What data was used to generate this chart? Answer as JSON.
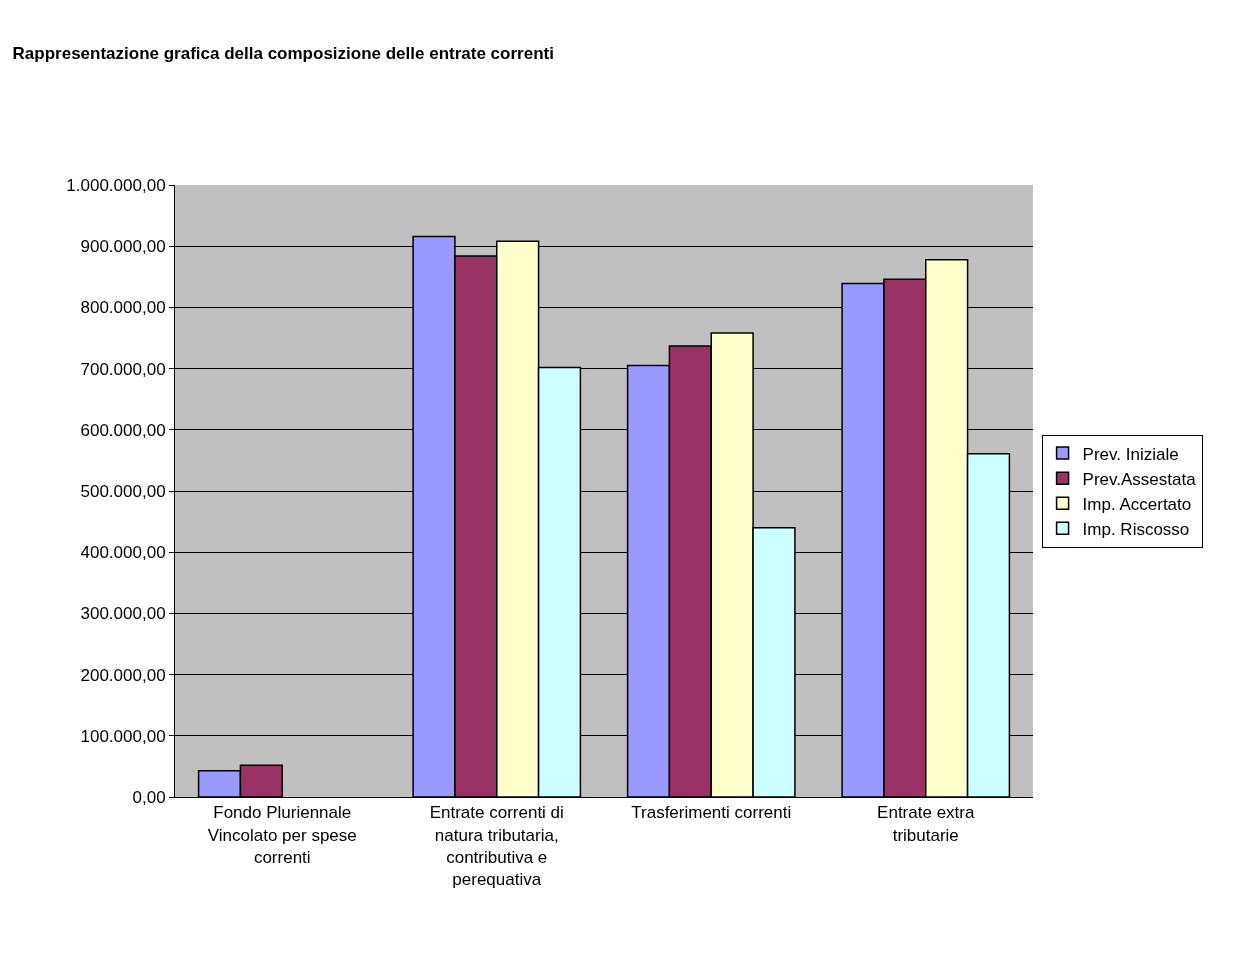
{
  "chart_data": {
    "type": "bar",
    "title": "Rappresentazione grafica della composizione delle entrate correnti",
    "categories": [
      "Fondo Pluriennale Vincolato per spese correnti",
      "Entrate correnti di natura tributaria, contributiva e perequativa",
      "Trasferimenti correnti",
      "Entrate extra tributarie"
    ],
    "series": [
      {
        "name": "Prev. Iniziale",
        "color": "#9999ff",
        "values": [
          43000,
          916000,
          705000,
          839000
        ]
      },
      {
        "name": "Prev.Assestata",
        "color": "#993366",
        "values": [
          52000,
          884000,
          737000,
          846000
        ]
      },
      {
        "name": "Imp. Accertato",
        "color": "#ffffcc",
        "values": [
          null,
          908000,
          758000,
          878000
        ]
      },
      {
        "name": "Imp. Riscosso",
        "color": "#ccffff",
        "values": [
          null,
          702000,
          440000,
          561000
        ]
      }
    ],
    "ylim": [
      0,
      1000000
    ],
    "yticks": [
      {
        "value": 0,
        "label": "0,00"
      },
      {
        "value": 100000,
        "label": "100.000,00"
      },
      {
        "value": 200000,
        "label": "200.000,00"
      },
      {
        "value": 300000,
        "label": "300.000,00"
      },
      {
        "value": 400000,
        "label": "400.000,00"
      },
      {
        "value": 500000,
        "label": "500.000,00"
      },
      {
        "value": 600000,
        "label": "600.000,00"
      },
      {
        "value": 700000,
        "label": "700.000,00"
      },
      {
        "value": 800000,
        "label": "800.000,00"
      },
      {
        "value": 900000,
        "label": "900.000,00"
      },
      {
        "value": 1000000,
        "label": "1.000.000,00"
      }
    ],
    "grid": "y",
    "legend": "right"
  }
}
